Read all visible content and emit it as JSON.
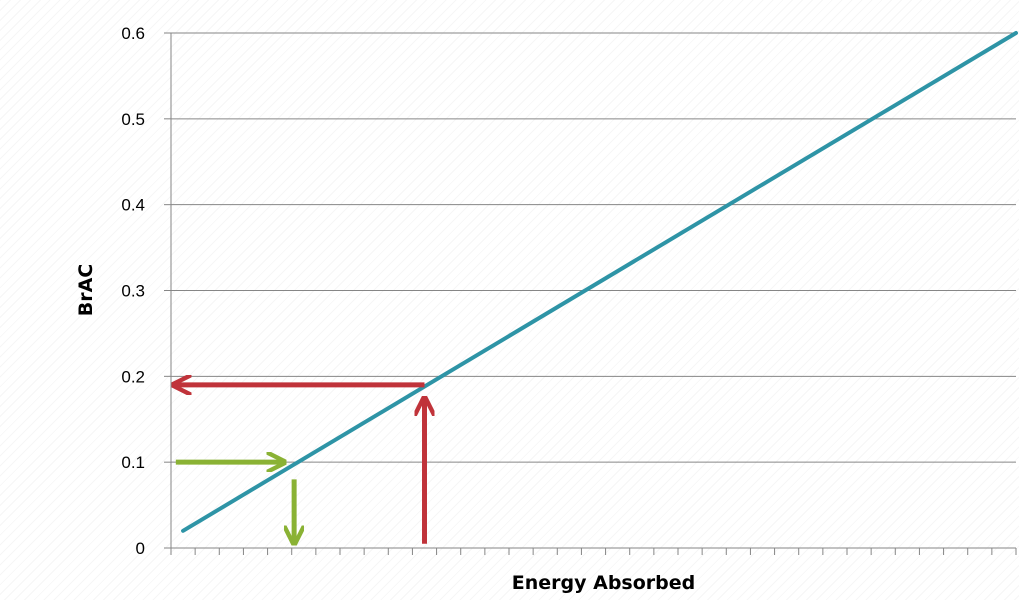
{
  "chart_data": {
    "type": "line",
    "title": "",
    "xlabel": "Energy Absorbed",
    "ylabel": "BrAC",
    "ylim": [
      0,
      0.6
    ],
    "yticks": [
      "0",
      "0.1",
      "0.2",
      "0.3",
      "0.4",
      "0.5",
      "0.6"
    ],
    "x_tick_count": 35,
    "grid": true,
    "series": [
      {
        "color": "#2E94A6",
        "x": [
          0.5,
          35
        ],
        "y": [
          0.02,
          0.6
        ]
      }
    ],
    "annotations": [
      {
        "kind": "arrow",
        "color": "#C0333A",
        "description": "vertical arrow up from x-axis to line",
        "from": [
          10.5,
          0.005
        ],
        "to": [
          10.5,
          0.175
        ]
      },
      {
        "kind": "arrow",
        "color": "#C0333A",
        "description": "horizontal arrow from line to y-axis",
        "from": [
          10.5,
          0.19
        ],
        "to": [
          0.1,
          0.19
        ]
      },
      {
        "kind": "arrow",
        "color": "#8AB234",
        "description": "horizontal arrow from y-axis to line",
        "from": [
          0.2,
          0.1
        ],
        "to": [
          4.7,
          0.1
        ]
      },
      {
        "kind": "arrow",
        "color": "#8AB234",
        "description": "vertical arrow down from line toward x-axis",
        "from": [
          5.1,
          0.08
        ],
        "to": [
          5.1,
          0.005
        ]
      }
    ],
    "colors": {
      "line": "#2E94A6",
      "red_arrow": "#C0333A",
      "green_arrow": "#8AB234",
      "grid": "#868686",
      "axis": "#868686"
    }
  }
}
